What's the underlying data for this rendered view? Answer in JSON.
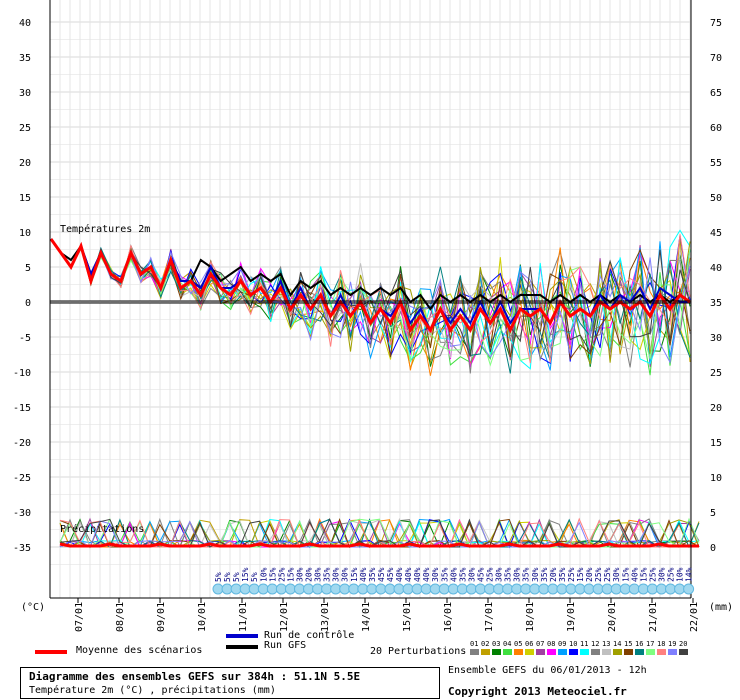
{
  "chart_data": {
    "type": "line",
    "temp_label": "Températures 2m",
    "precip_label": "Précipitations",
    "left_unit": "(°C)",
    "right_unit": "(mm)",
    "left_ticks": [
      40,
      35,
      30,
      25,
      20,
      15,
      10,
      5,
      0,
      -5,
      -10,
      -15,
      -20,
      -25,
      -30,
      -35
    ],
    "right_ticks": [
      75,
      70,
      65,
      60,
      55,
      50,
      45,
      40,
      35,
      30,
      25,
      20,
      15,
      10,
      5,
      0
    ],
    "x_dates": [
      "07/01",
      "08/01",
      "09/01",
      "10/01",
      "11/01",
      "12/01",
      "13/01",
      "14/01",
      "15/01",
      "16/01",
      "17/01",
      "18/01",
      "19/01",
      "20/01",
      "21/01",
      "22/01"
    ],
    "snow_probs": [
      "5%",
      "5%",
      "5%",
      "15%",
      "5%",
      "10%",
      "15%",
      "25%",
      "15%",
      "30%",
      "20%",
      "30%",
      "35%",
      "30%",
      "30%",
      "15%",
      "40%",
      "35%",
      "45%",
      "45%",
      "40%",
      "40%",
      "40%",
      "40%",
      "30%",
      "35%",
      "40%",
      "35%",
      "30%",
      "45%",
      "25%",
      "30%",
      "35%",
      "30%",
      "35%",
      "30%",
      "35%",
      "20%",
      "35%",
      "25%",
      "15%",
      "20%",
      "25%",
      "25%",
      "30%",
      "15%",
      "40%",
      "15%",
      "25%",
      "30%",
      "25%",
      "10%",
      "14%"
    ],
    "series": [
      {
        "name": "Moyenne des scénarios",
        "color": "#ff0000",
        "temp": [
          9,
          7,
          5,
          8,
          3,
          7,
          4,
          3,
          7,
          4,
          5,
          2,
          6,
          2,
          3,
          1,
          4,
          2,
          1,
          3,
          1,
          2,
          0,
          2,
          -1,
          1,
          -1,
          1,
          -2,
          0,
          -2,
          0,
          -3,
          -1,
          -3,
          0,
          -4,
          -2,
          -4,
          -1,
          -4,
          -2,
          -4,
          -1,
          -3,
          -1,
          -4,
          -1,
          -2,
          -1,
          -3,
          0,
          -2,
          -1,
          -2,
          0,
          -1,
          0,
          -1,
          0,
          -2,
          1,
          -1,
          1,
          0
        ]
      },
      {
        "name": "Run de contrôle",
        "color": "#0000cc",
        "temp": [
          9,
          7,
          5,
          8,
          4,
          7,
          4,
          3,
          7,
          4,
          5,
          2,
          6,
          3,
          3,
          2,
          5,
          2,
          2,
          3,
          1,
          2,
          0,
          3,
          -1,
          2,
          -1,
          1,
          -2,
          1,
          -2,
          0,
          -3,
          -1,
          -2,
          0,
          -3,
          -1,
          -4,
          -1,
          -3,
          -1,
          -3,
          0,
          -3,
          0,
          -3,
          -1,
          -1,
          -1,
          -3,
          0,
          -2,
          -1,
          -2,
          1,
          -1,
          1,
          0,
          2,
          -1,
          2,
          1,
          0,
          0
        ]
      },
      {
        "name": "Run GFS",
        "color": "#000000",
        "temp": [
          9,
          7,
          6,
          8,
          4,
          7,
          4,
          3,
          7,
          4,
          5,
          2,
          6,
          3,
          3,
          6,
          5,
          3,
          4,
          5,
          3,
          4,
          3,
          4,
          1,
          3,
          2,
          3,
          1,
          2,
          1,
          2,
          1,
          2,
          1,
          2,
          0,
          1,
          -1,
          1,
          0,
          1,
          0,
          1,
          0,
          1,
          0,
          1,
          1,
          1,
          0,
          1,
          0,
          1,
          0,
          1,
          0,
          1,
          0,
          1,
          0,
          1,
          0,
          1,
          0
        ]
      }
    ],
    "legend": {
      "mean": "Moyenne des scénarios",
      "control": "Run de contrôle",
      "gfs": "Run GFS",
      "perturbations": "20 Perturbations",
      "members": [
        "01",
        "02",
        "03",
        "04",
        "05",
        "06",
        "07",
        "08",
        "09",
        "10",
        "11",
        "12",
        "13",
        "14",
        "15",
        "16",
        "17",
        "18",
        "19",
        "20"
      ],
      "member_colors": [
        "#808080",
        "#c0a000",
        "#008000",
        "#40e040",
        "#ff8000",
        "#d0d000",
        "#a040a0",
        "#ff00ff",
        "#00a0ff",
        "#0000ff",
        "#00ffff",
        "#808080",
        "#c0c0c0",
        "#a0a000",
        "#804000",
        "#008080",
        "#80ff80",
        "#ff8080",
        "#8080ff",
        "#404040"
      ]
    },
    "title_main": "Diagramme des ensembles GEFS sur 384h : 51.1N 5.5E",
    "subtitle": "Température 2m (°C) , précipitations (mm)",
    "run_info": "Ensemble GEFS du 06/01/2013 - 12h",
    "copyright": "Copyright 2013 Meteociel.fr"
  }
}
